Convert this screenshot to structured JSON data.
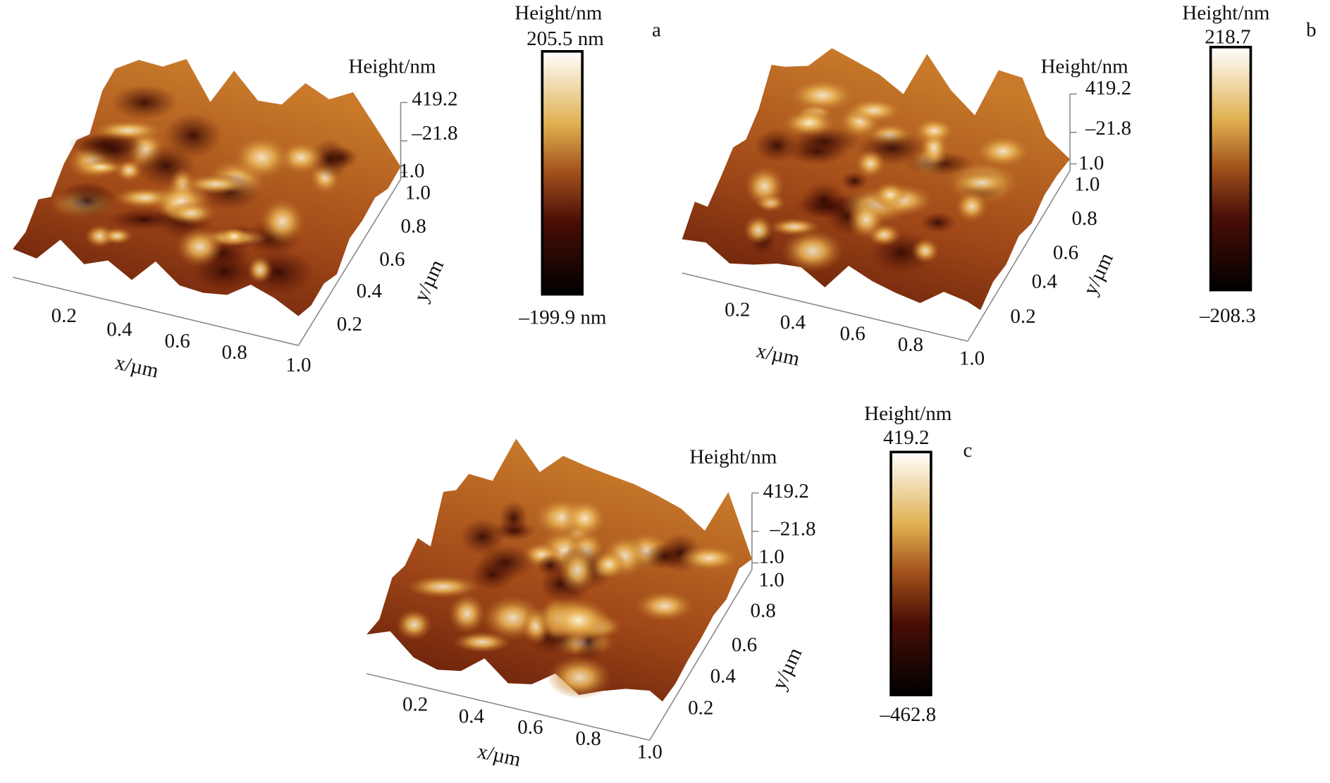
{
  "panels": [
    {
      "label": "a",
      "z_title": "Height/nm",
      "z_ticks": [
        "419.2",
        "–21.8",
        "1.0"
      ],
      "y_ticks": [
        "1.0",
        "0.8",
        "0.6",
        "0.4",
        "0.2"
      ],
      "y_label": "y/µm",
      "x_ticks": [
        "0.2",
        "0.4",
        "0.6",
        "0.8",
        "1.0"
      ],
      "x_label": "x/µm",
      "colorbar": {
        "title": "Height/nm",
        "max": "205.5 nm",
        "min": "–199.9 nm"
      }
    },
    {
      "label": "b",
      "z_title": "Height/nm",
      "z_ticks": [
        "419.2",
        "–21.8",
        "1.0"
      ],
      "y_ticks": [
        "1.0",
        "0.8",
        "0.6",
        "0.4",
        "0.2"
      ],
      "y_label": "y/µm",
      "x_ticks": [
        "0.2",
        "0.4",
        "0.6",
        "0.8",
        "1.0"
      ],
      "x_label": "x/µm",
      "colorbar": {
        "title": "Height/nm",
        "max": "218.7",
        "min": "–208.3"
      }
    },
    {
      "label": "c",
      "z_title": "Height/nm",
      "z_ticks": [
        "419.2",
        "–21.8",
        "1.0"
      ],
      "y_ticks": [
        "1.0",
        "0.8",
        "0.6",
        "0.4",
        "0.2"
      ],
      "y_label": "y/µm",
      "x_ticks": [
        "0.2",
        "0.4",
        "0.6",
        "0.8",
        "1.0"
      ],
      "x_label": "x/µm",
      "colorbar": {
        "title": "Height/nm",
        "max": "419.2",
        "min": "–462.8"
      }
    }
  ]
}
